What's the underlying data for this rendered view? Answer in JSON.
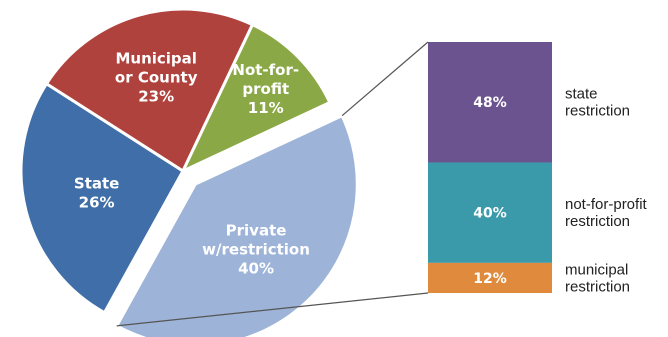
{
  "chart_data": [
    {
      "type": "pie",
      "categories": [
        "Private w/restriction",
        "State",
        "Municipal or County",
        "Not-for-profit"
      ],
      "slices": [
        {
          "label_lines": [
            "Private",
            "w/restriction"
          ],
          "value": 40,
          "value_label": "40%",
          "color": "#9db3d7",
          "exploded": true
        },
        {
          "label_lines": [
            "State"
          ],
          "value": 26,
          "value_label": "26%",
          "color": "#3f6ea8"
        },
        {
          "label_lines": [
            "Municipal",
            "or County"
          ],
          "value": 23,
          "value_label": "23%",
          "color": "#b0423e"
        },
        {
          "label_lines": [
            "Not-for-",
            "profit"
          ],
          "value": 11,
          "value_label": "11%",
          "color": "#8aa846"
        }
      ]
    },
    {
      "type": "bar",
      "stacked": true,
      "breakdown_of": "Private w/restriction",
      "series": [
        {
          "label_lines": [
            "state",
            "restriction"
          ],
          "value": 48,
          "value_label": "48%",
          "color": "#6b5390"
        },
        {
          "label_lines": [
            "not-for-profit",
            "restriction"
          ],
          "value": 40,
          "value_label": "40%",
          "color": "#3a9aaa"
        },
        {
          "label_lines": [
            "municipal",
            "restriction"
          ],
          "value": 12,
          "value_label": "12%",
          "color": "#df8a3c"
        }
      ]
    }
  ]
}
